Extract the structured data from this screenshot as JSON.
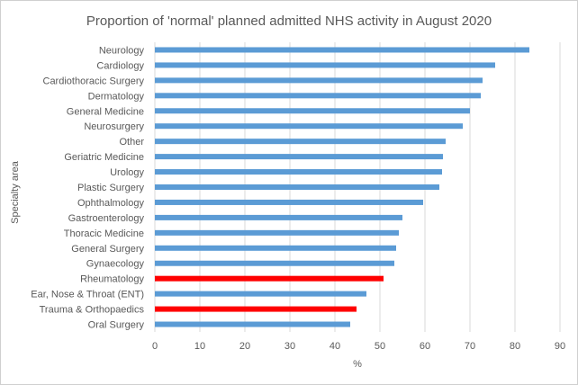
{
  "chart_data": {
    "type": "bar",
    "orientation": "horizontal",
    "title": "Proportion of 'normal' planned admitted NHS activity in August 2020",
    "xlabel": "%",
    "ylabel": "Specialty area",
    "xlim": [
      0,
      90
    ],
    "xticks": [
      0,
      10,
      20,
      30,
      40,
      50,
      60,
      70,
      80,
      90
    ],
    "grid": "vertical",
    "colors": {
      "default": "#5B9BD5",
      "highlight": "#FF0000"
    },
    "categories": [
      "Neurology",
      "Cardiology",
      "Cardiothoracic Surgery",
      "Dermatology",
      "General Medicine",
      "Neurosurgery",
      "Other",
      "Geriatric Medicine",
      "Urology",
      "Plastic Surgery",
      "Ophthalmology",
      "Gastroenterology",
      "Thoracic Medicine",
      "General Surgery",
      "Gynaecology",
      "Rheumatology",
      "Ear, Nose & Throat (ENT)",
      "Trauma & Orthopaedics",
      "Oral Surgery"
    ],
    "values": [
      83.2,
      75.6,
      72.8,
      72.4,
      70,
      68.4,
      64.6,
      64,
      63.8,
      63.2,
      59.6,
      55,
      54.2,
      53.6,
      53.2,
      50.8,
      47,
      44.8,
      43.4
    ],
    "highlighted": [
      false,
      false,
      false,
      false,
      false,
      false,
      false,
      false,
      false,
      false,
      false,
      false,
      false,
      false,
      false,
      true,
      false,
      true,
      false
    ]
  }
}
